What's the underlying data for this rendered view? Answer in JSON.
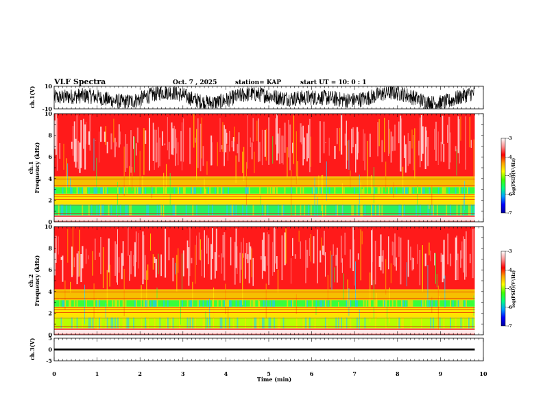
{
  "header": {
    "title": "VLF Spectra",
    "date": "Oct. 7  , 2025",
    "station": "station= KAP",
    "start_ut": "start  UT =   10: 0  : 1"
  },
  "chart_data": [
    {
      "type": "line",
      "name": "ch1-waveform",
      "ylabel": "ch.1(V)",
      "ylim": [
        -10,
        10
      ],
      "yticks": [
        "10",
        "-10"
      ],
      "xlim": [
        0,
        10
      ]
    },
    {
      "type": "heatmap",
      "name": "ch1-spectrogram",
      "ylabel": "ch.1\nFrequency  (kHz)",
      "ylabel_lines": [
        "ch.1",
        "Frequency  (kHz)"
      ],
      "ylim": [
        0,
        10
      ],
      "yticks": [
        "0",
        "2",
        "4",
        "6",
        "8",
        "10"
      ],
      "colorbar": {
        "label": "log(PSD)(V²/Hz)",
        "range": [
          -7,
          -3
        ],
        "ticks": [
          "-3",
          "-4",
          "-5",
          "-6",
          "-7"
        ]
      }
    },
    {
      "type": "heatmap",
      "name": "ch2-spectrogram",
      "ylabel_lines": [
        "ch.2",
        "Frequency  (kHz)"
      ],
      "ylim": [
        0,
        10
      ],
      "yticks": [
        "0",
        "2",
        "4",
        "6",
        "8",
        "10"
      ],
      "colorbar": {
        "label": "log(PSD)(V²/Hz)",
        "range": [
          -7,
          -3
        ],
        "ticks": [
          "-3",
          "-4",
          "-5",
          "-6",
          "-7"
        ]
      }
    },
    {
      "type": "line",
      "name": "ch3-waveform",
      "ylabel": "ch.3(V)",
      "ylim": [
        -5,
        5
      ],
      "yticks": [
        "5",
        "0",
        "-5"
      ],
      "xlim": [
        0,
        10
      ]
    }
  ],
  "x_axis": {
    "label": "Time  (min)",
    "ticks": [
      "0",
      "1",
      "2",
      "3",
      "4",
      "5",
      "6",
      "7",
      "8",
      "9",
      "10"
    ],
    "range": [
      0,
      10
    ],
    "data_end": 9.8
  },
  "colors": {
    "colormap": [
      "#0000a0",
      "#0000ff",
      "#00a0ff",
      "#00ff80",
      "#40ff00",
      "#ffff00",
      "#ffa000",
      "#ff0000",
      "#ff9090",
      "#ffffff"
    ]
  }
}
